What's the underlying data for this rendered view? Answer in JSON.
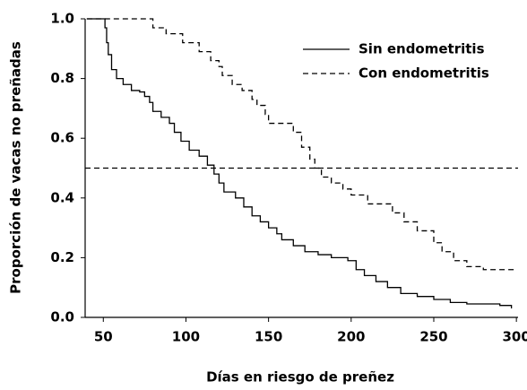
{
  "chart_data": {
    "type": "step",
    "x_label": "Días en riesgo de preñez",
    "y_label": "Proporción de vacas no preñadas",
    "xlim": [
      39,
      301
    ],
    "ylim": [
      0,
      1
    ],
    "xticks": [
      50,
      100,
      150,
      200,
      250,
      300
    ],
    "yticks": [
      {
        "value": 0,
        "label": "0.0"
      },
      0.2,
      0.4,
      0.6,
      0.8,
      {
        "value": 1,
        "label": "1.0"
      }
    ],
    "hline": 0.5,
    "legend": "upper-right",
    "series": [
      {
        "name": "Sin endometritis",
        "color": "#000000",
        "line_style": "solid",
        "x": [
          40,
          51,
          52,
          53,
          55,
          58,
          62,
          67,
          72,
          75,
          78,
          80,
          85,
          90,
          93,
          97,
          102,
          108,
          113,
          117,
          120,
          123,
          130,
          135,
          140,
          145,
          150,
          155,
          158,
          165,
          172,
          180,
          188,
          198,
          203,
          208,
          215,
          222,
          230,
          240,
          250,
          260,
          270,
          290,
          297
        ],
        "values": [
          1.0,
          0.97,
          0.92,
          0.88,
          0.83,
          0.8,
          0.78,
          0.76,
          0.755,
          0.74,
          0.72,
          0.69,
          0.67,
          0.65,
          0.62,
          0.59,
          0.56,
          0.54,
          0.51,
          0.48,
          0.45,
          0.42,
          0.4,
          0.37,
          0.34,
          0.32,
          0.3,
          0.28,
          0.26,
          0.24,
          0.22,
          0.21,
          0.2,
          0.19,
          0.16,
          0.14,
          0.12,
          0.1,
          0.08,
          0.07,
          0.06,
          0.05,
          0.045,
          0.04,
          0.03
        ]
      },
      {
        "name": "Con endometritis",
        "color": "#000000",
        "line_style": "dashed",
        "x": [
          40,
          80,
          88,
          98,
          108,
          115,
          120,
          122,
          128,
          134,
          140,
          143,
          148,
          150,
          165,
          170,
          175,
          178,
          182,
          188,
          195,
          200,
          210,
          225,
          232,
          240,
          250,
          255,
          262,
          270,
          280,
          300
        ],
        "values": [
          1.0,
          0.97,
          0.95,
          0.92,
          0.89,
          0.86,
          0.84,
          0.81,
          0.78,
          0.76,
          0.73,
          0.71,
          0.68,
          0.65,
          0.62,
          0.57,
          0.53,
          0.5,
          0.47,
          0.45,
          0.43,
          0.41,
          0.38,
          0.35,
          0.32,
          0.29,
          0.25,
          0.22,
          0.19,
          0.17,
          0.16,
          0.16
        ]
      }
    ]
  }
}
